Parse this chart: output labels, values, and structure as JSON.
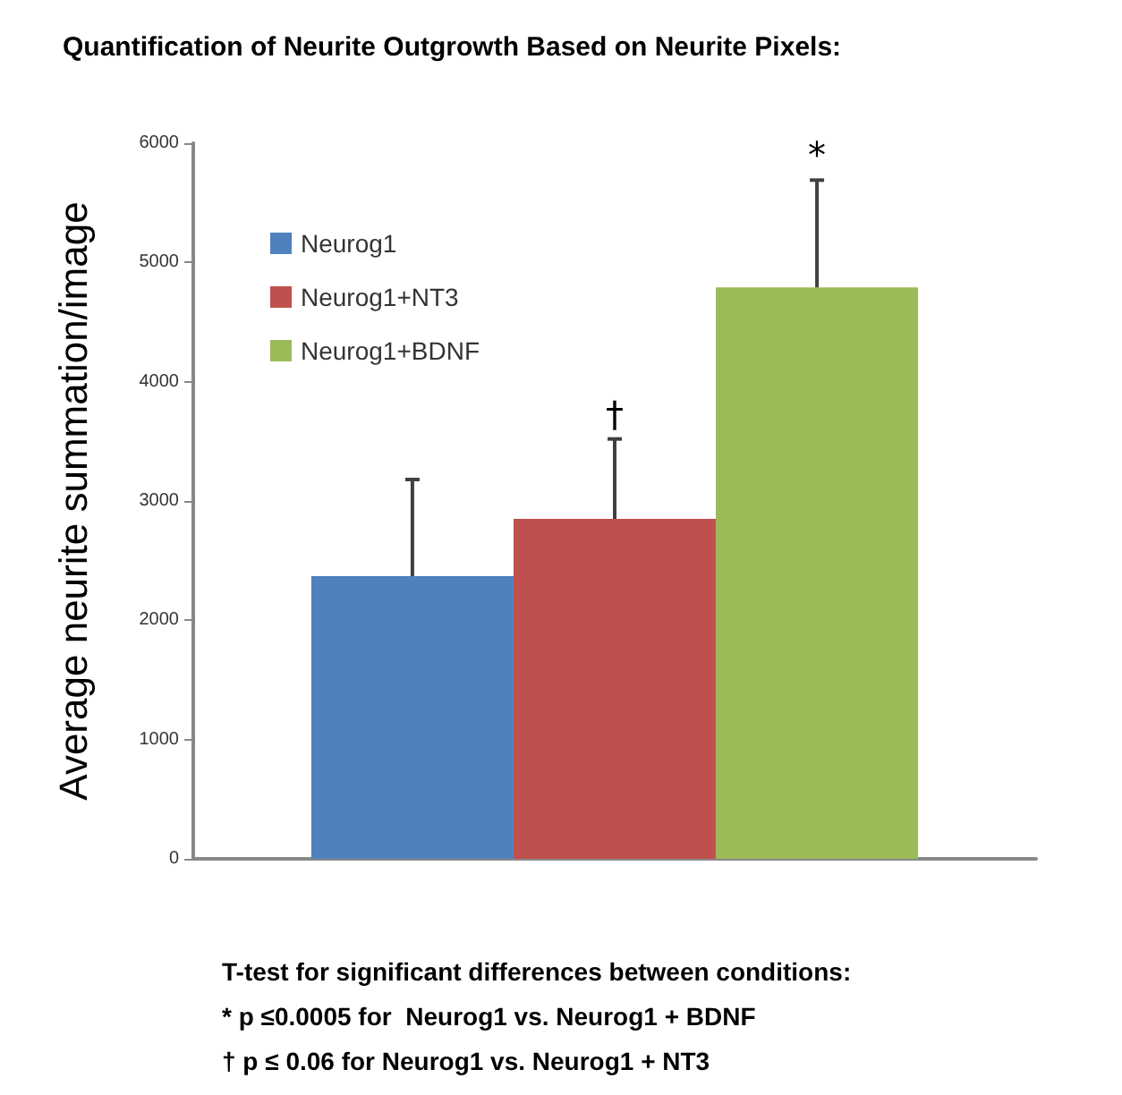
{
  "chart_data": {
    "type": "bar",
    "title": "Quantification of Neurite Outgrowth Based on Neurite Pixels:",
    "ylabel": "Average neurite summation/image",
    "categories": [
      null
    ],
    "series": [
      {
        "name": "Neurog1",
        "color": "#4f81bd",
        "values": [
          2370
        ],
        "errors": [
          [
            2370,
            3180
          ]
        ],
        "value_labels": [
          null
        ]
      },
      {
        "name": "Neurog1+NT3",
        "color": "#c0504d",
        "values": [
          2850
        ],
        "errors": [
          [
            2850,
            3520
          ]
        ],
        "value_labels": [
          "†"
        ]
      },
      {
        "name": "Neurog1+BDNF",
        "color": "#9bbb59",
        "values": [
          4790
        ],
        "errors": [
          [
            4790,
            5690
          ]
        ],
        "value_labels": [
          "*"
        ]
      }
    ],
    "ylim": [
      0,
      6000
    ],
    "yticks": [
      0,
      1000,
      2000,
      3000,
      4000,
      5000,
      6000
    ],
    "grid": false,
    "legend": "top left",
    "annotations": [
      "T-test for significant differences between conditions:",
      "* p ≤0.0005 for  Neurog1 vs. Neurog1 + BDNF",
      "† p ≤ 0.06 for Neurog1 vs. Neurog1 + NT3"
    ]
  }
}
